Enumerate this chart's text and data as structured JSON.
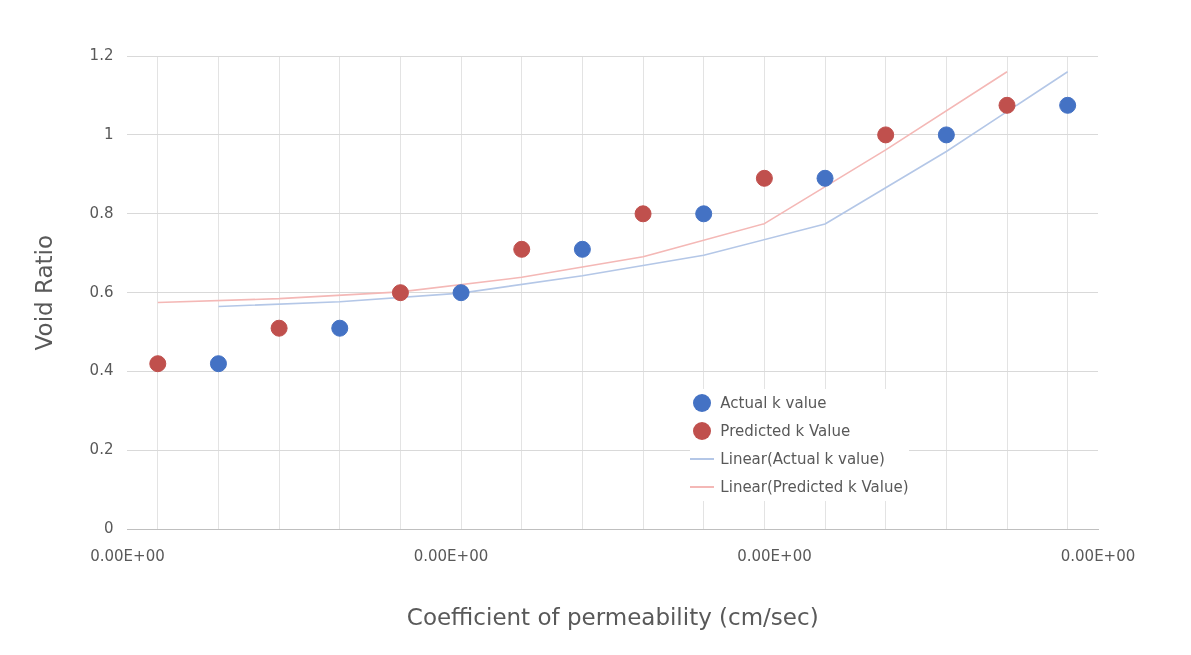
{
  "chart_data": {
    "type": "scatter",
    "xlabel": "Coefficient of permeability (cm/sec)",
    "ylabel": "Void Ratio",
    "categories": [
      null,
      null,
      null,
      null,
      null,
      null,
      null,
      null,
      null,
      null,
      null,
      null,
      null,
      null,
      null,
      null
    ],
    "annotations": [
      "0.00E+00",
      "0.00E+00",
      "0.00E+00",
      "0.00E+00"
    ],
    "ylim": [
      0,
      1.2
    ],
    "yticks": [
      0,
      0.2,
      0.4,
      0.6,
      0.8,
      1,
      1.2
    ],
    "grid": true,
    "legend": "bottom right",
    "series": [
      {
        "name": "Actual k value",
        "color": "#4472c4",
        "marker": "circle",
        "values": [
          null,
          0.42,
          null,
          0.51,
          null,
          0.6,
          null,
          0.71,
          null,
          0.8,
          null,
          0.89,
          null,
          1.0,
          null,
          1.075
        ]
      },
      {
        "name": "Predicted k Value",
        "color": "#c0504d",
        "marker": "circle",
        "values": [
          0.42,
          null,
          0.51,
          null,
          0.6,
          null,
          0.71,
          null,
          0.8,
          null,
          0.89,
          null,
          1.0,
          null,
          1.075,
          null
        ]
      },
      {
        "name": "Linear(Actual k value)",
        "type": "line",
        "color": "#b4c7e7",
        "marker": "none",
        "values": [
          null,
          0.565,
          null,
          0.577,
          null,
          0.599,
          null,
          0.643,
          null,
          0.695,
          null,
          0.774,
          null,
          0.958,
          null,
          1.16
        ]
      },
      {
        "name": "Linear(Predicted k Value)",
        "type": "line",
        "color": "#f4b8b6",
        "marker": "none",
        "values": [
          0.575,
          null,
          0.585,
          null,
          0.602,
          null,
          0.639,
          null,
          0.691,
          null,
          0.775,
          null,
          0.962,
          null,
          1.16,
          null
        ]
      }
    ]
  }
}
